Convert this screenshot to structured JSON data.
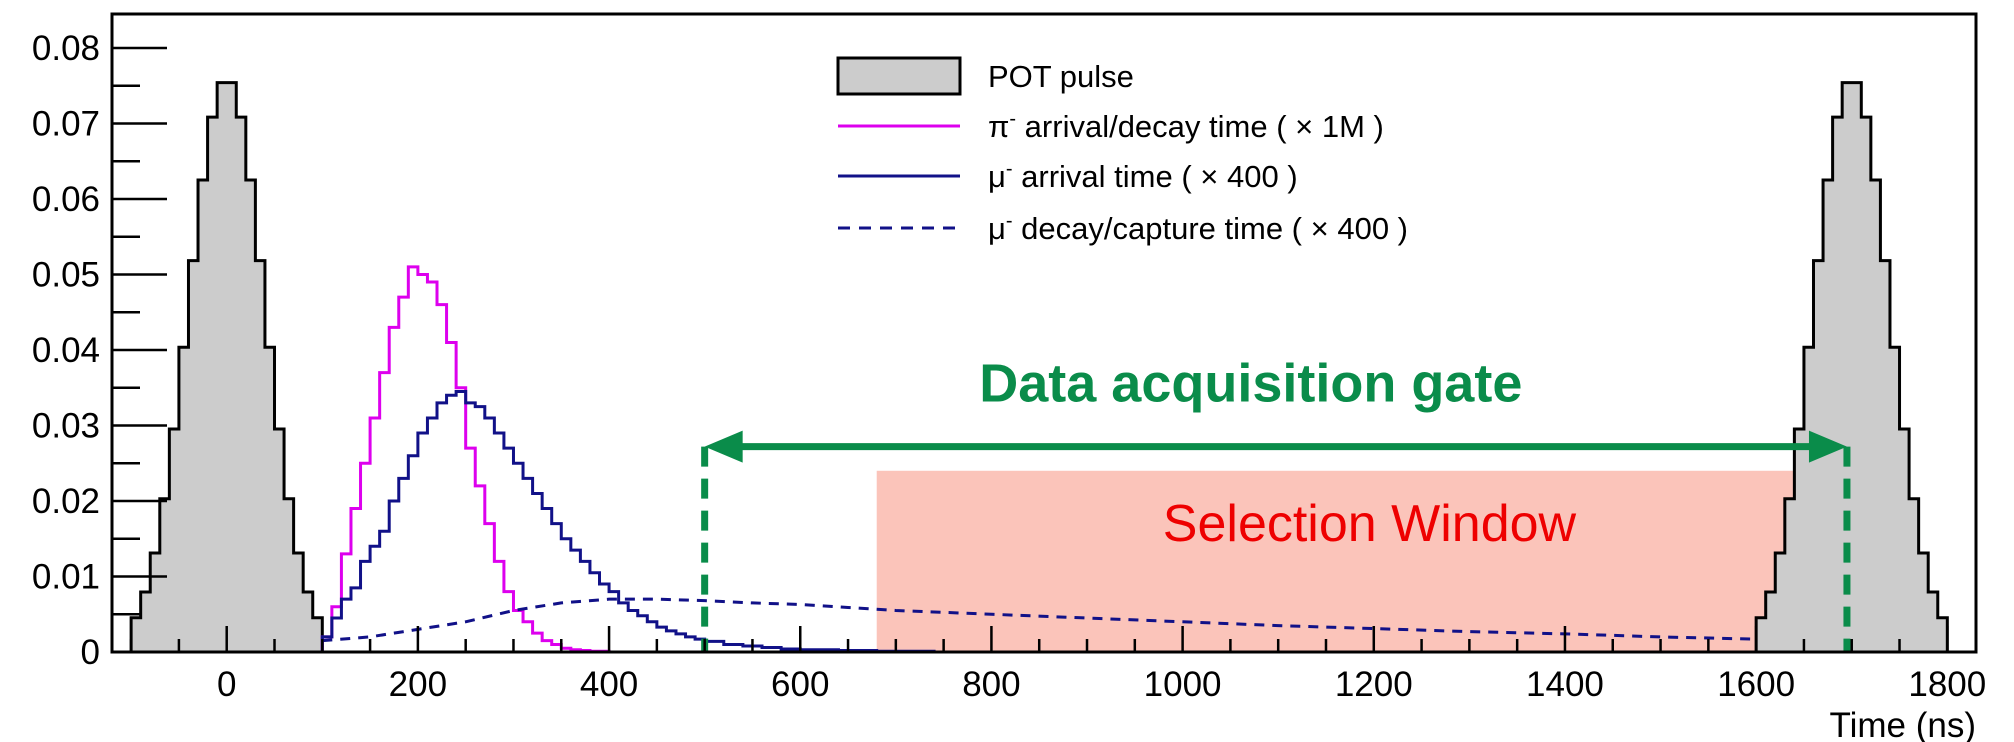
{
  "chart_data": {
    "type": "histogram",
    "xlabel": "Time (ns)",
    "ylabel": "",
    "xlim": [
      -120,
      1830
    ],
    "ylim": [
      0,
      0.0845
    ],
    "x_ticks": [
      0,
      200,
      400,
      600,
      800,
      1000,
      1200,
      1400,
      1600,
      1800
    ],
    "y_ticks": [
      0,
      0.01,
      0.02,
      0.03,
      0.04,
      0.05,
      0.06,
      0.07,
      0.08
    ],
    "x_tick_labels": [
      "0",
      "200",
      "400",
      "600",
      "800",
      "1000",
      "1200",
      "1400",
      "1600",
      "1800"
    ],
    "y_tick_labels": [
      "0",
      "0.01",
      "0.02",
      "0.03",
      "0.04",
      "0.05",
      "0.06",
      "0.07",
      "0.08"
    ],
    "legend": {
      "position": "top-center",
      "entries": [
        {
          "base": "POT pulse",
          "sup": "",
          "rest": ""
        },
        {
          "base": "π",
          "sup": "-",
          "rest": " arrival/decay time ( × 1M )"
        },
        {
          "base": "μ",
          "sup": "-",
          "rest": " arrival time ( × 400 )"
        },
        {
          "base": "μ",
          "sup": "-",
          "rest": " decay/capture time ( × 400 )"
        }
      ]
    },
    "series": [
      {
        "name": "POT pulse",
        "style": "filled-step",
        "color": "#000000",
        "fill": "#cccccc",
        "pulses": [
          {
            "center": 0,
            "start": -100,
            "end": 100,
            "peak": 0.076
          },
          {
            "center": 1700,
            "start": 1600,
            "end": 1800,
            "peak": 0.076
          }
        ]
      },
      {
        "name": "π- arrival/decay time ( × 1M )",
        "style": "step",
        "color": "#dd00ee",
        "points": [
          [
            90,
            0
          ],
          [
            100,
            0.002
          ],
          [
            110,
            0.006
          ],
          [
            120,
            0.013
          ],
          [
            130,
            0.019
          ],
          [
            140,
            0.025
          ],
          [
            150,
            0.031
          ],
          [
            160,
            0.037
          ],
          [
            170,
            0.043
          ],
          [
            180,
            0.047
          ],
          [
            190,
            0.051
          ],
          [
            200,
            0.05
          ],
          [
            210,
            0.049
          ],
          [
            220,
            0.046
          ],
          [
            230,
            0.041
          ],
          [
            240,
            0.035
          ],
          [
            250,
            0.027
          ],
          [
            260,
            0.022
          ],
          [
            270,
            0.017
          ],
          [
            280,
            0.012
          ],
          [
            290,
            0.008
          ],
          [
            300,
            0.0055
          ],
          [
            310,
            0.004
          ],
          [
            320,
            0.0025
          ],
          [
            330,
            0.0015
          ],
          [
            340,
            0.001
          ],
          [
            350,
            0.0005
          ],
          [
            360,
            0.0003
          ],
          [
            370,
            0.0002
          ],
          [
            380,
            0.0001
          ],
          [
            400,
            0
          ]
        ]
      },
      {
        "name": "μ- arrival time ( × 400 )",
        "style": "step",
        "color": "#111188",
        "points": [
          [
            100,
            0.002
          ],
          [
            110,
            0.0045
          ],
          [
            120,
            0.007
          ],
          [
            130,
            0.0085
          ],
          [
            140,
            0.012
          ],
          [
            150,
            0.014
          ],
          [
            160,
            0.016
          ],
          [
            170,
            0.02
          ],
          [
            180,
            0.023
          ],
          [
            190,
            0.026
          ],
          [
            200,
            0.029
          ],
          [
            210,
            0.031
          ],
          [
            220,
            0.033
          ],
          [
            230,
            0.034
          ],
          [
            240,
            0.0345
          ],
          [
            250,
            0.033
          ],
          [
            260,
            0.0325
          ],
          [
            270,
            0.031
          ],
          [
            280,
            0.029
          ],
          [
            290,
            0.027
          ],
          [
            300,
            0.025
          ],
          [
            310,
            0.023
          ],
          [
            320,
            0.021
          ],
          [
            330,
            0.019
          ],
          [
            340,
            0.017
          ],
          [
            350,
            0.015
          ],
          [
            360,
            0.0135
          ],
          [
            370,
            0.012
          ],
          [
            380,
            0.0105
          ],
          [
            390,
            0.009
          ],
          [
            400,
            0.008
          ],
          [
            410,
            0.0065
          ],
          [
            420,
            0.0055
          ],
          [
            430,
            0.0048
          ],
          [
            440,
            0.004
          ],
          [
            450,
            0.0033
          ],
          [
            460,
            0.0028
          ],
          [
            470,
            0.0024
          ],
          [
            480,
            0.002
          ],
          [
            490,
            0.0017
          ],
          [
            500,
            0.0014
          ],
          [
            520,
            0.001
          ],
          [
            540,
            0.0008
          ],
          [
            560,
            0.0006
          ],
          [
            580,
            0.0004
          ],
          [
            600,
            0.0003
          ],
          [
            640,
            0.0002
          ],
          [
            680,
            0.0001
          ],
          [
            740,
            0
          ]
        ]
      },
      {
        "name": "μ- decay/capture time ( × 400 )",
        "style": "dashed-step",
        "color": "#111188",
        "points": [
          [
            100,
            0.0015
          ],
          [
            150,
            0.002
          ],
          [
            200,
            0.003
          ],
          [
            250,
            0.004
          ],
          [
            300,
            0.0055
          ],
          [
            350,
            0.0065
          ],
          [
            400,
            0.007
          ],
          [
            450,
            0.007
          ],
          [
            500,
            0.0068
          ],
          [
            550,
            0.0065
          ],
          [
            600,
            0.0063
          ],
          [
            650,
            0.0059
          ],
          [
            700,
            0.0055
          ],
          [
            800,
            0.005
          ],
          [
            900,
            0.0045
          ],
          [
            1000,
            0.004
          ],
          [
            1100,
            0.0035
          ],
          [
            1200,
            0.0031
          ],
          [
            1300,
            0.0027
          ],
          [
            1400,
            0.0024
          ],
          [
            1500,
            0.002
          ],
          [
            1600,
            0.0017
          ]
        ]
      }
    ],
    "annotations": {
      "daq_gate": {
        "label": "Data acquisition gate",
        "x_start": 500,
        "x_end": 1695,
        "y": 0.0272,
        "color": "#0a8c4a"
      },
      "selection_window": {
        "label": "Selection Window",
        "x_start": 680,
        "x_end": 1690,
        "y_top": 0.024,
        "fill": "#f8a090",
        "color": "#ee0000"
      }
    }
  }
}
